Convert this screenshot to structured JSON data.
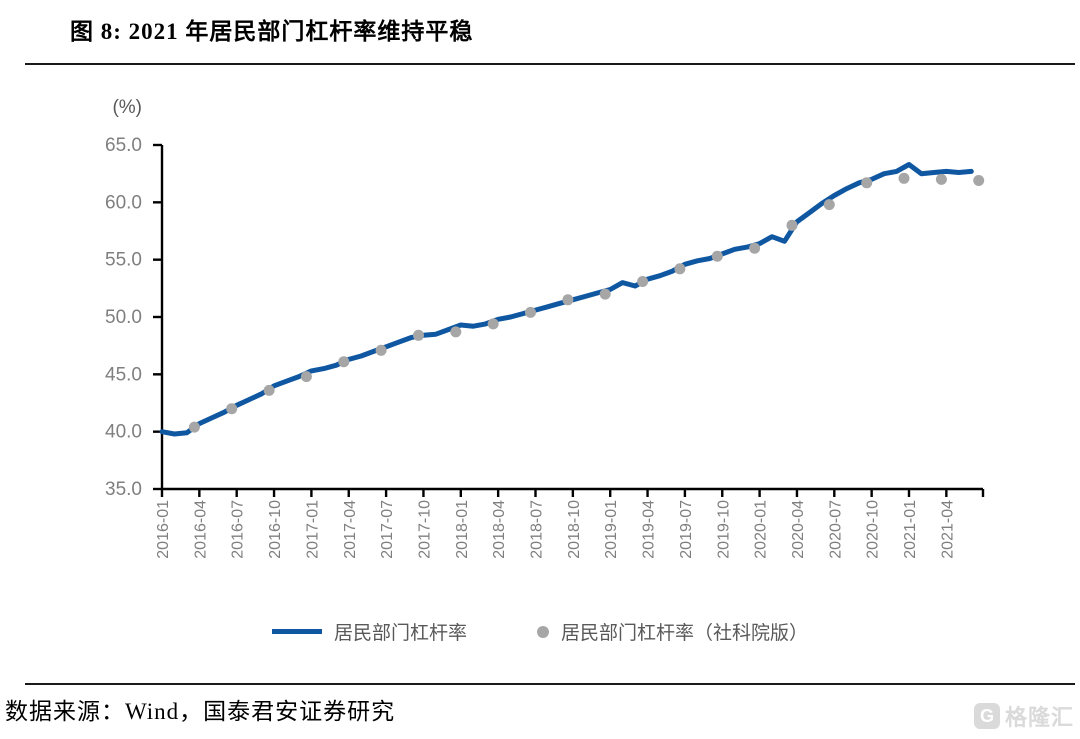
{
  "figure": {
    "title": "图 8: 2021 年居民部门杠杆率维持平稳"
  },
  "source": {
    "label": "数据来源：Wind，国泰君安证券研究"
  },
  "watermark": {
    "logo_letter": "G",
    "brand": "格隆汇",
    "color": "#d9d9d9"
  },
  "chart_data": {
    "type": "line",
    "title": "",
    "unit_label": "(%)",
    "ylim": [
      35,
      65
    ],
    "yticks": [
      35,
      40,
      45,
      50,
      55,
      60,
      65
    ],
    "ytick_labels": [
      "35.0",
      "40.0",
      "45.0",
      "50.0",
      "55.0",
      "60.0",
      "65.0"
    ],
    "x_tick_labels": [
      "2016-01",
      "2016-04",
      "2016-07",
      "2016-10",
      "2017-01",
      "2017-04",
      "2017-07",
      "2017-10",
      "2018-01",
      "2018-04",
      "2018-07",
      "2018-10",
      "2019-01",
      "2019-04",
      "2019-07",
      "2019-10",
      "2020-01",
      "2020-04",
      "2020-07",
      "2020-10",
      "2021-01",
      "2021-04"
    ],
    "grid": false,
    "legend_position": "bottom",
    "axis_color": "#000000",
    "tick_label_color": "#7f7f7f",
    "series": [
      {
        "name": "居民部门杠杆率",
        "type": "line",
        "color": "#1057A2",
        "x_start": "2016-01",
        "x_freq_months": 1,
        "values": [
          40.0,
          39.8,
          39.9,
          40.7,
          41.2,
          41.7,
          42.3,
          42.8,
          43.3,
          44.0,
          44.4,
          44.8,
          45.3,
          45.5,
          45.8,
          46.3,
          46.6,
          47.0,
          47.4,
          47.8,
          48.2,
          48.4,
          48.5,
          48.9,
          49.3,
          49.2,
          49.4,
          49.8,
          50.0,
          50.3,
          50.6,
          50.9,
          51.2,
          51.5,
          51.8,
          52.1,
          52.4,
          53.0,
          52.7,
          53.3,
          53.6,
          54.0,
          54.6,
          54.9,
          55.1,
          55.5,
          55.9,
          56.1,
          56.4,
          57.0,
          56.6,
          58.3,
          59.1,
          59.9,
          60.6,
          61.2,
          61.7,
          62.0,
          62.5,
          62.7,
          63.3,
          62.5,
          62.6,
          62.7,
          62.6,
          62.7
        ]
      },
      {
        "name": "居民部门杠杆率（社科院版）",
        "type": "scatter",
        "color": "#A6A6A6",
        "x_start": "2016-03",
        "x_freq_months": 3,
        "values": [
          40.4,
          42.0,
          43.6,
          44.8,
          46.1,
          47.1,
          48.4,
          48.7,
          49.4,
          50.4,
          51.5,
          52.0,
          53.1,
          54.2,
          55.3,
          56.0,
          58.0,
          59.8,
          61.7,
          62.1,
          62.0,
          61.9
        ]
      }
    ]
  }
}
